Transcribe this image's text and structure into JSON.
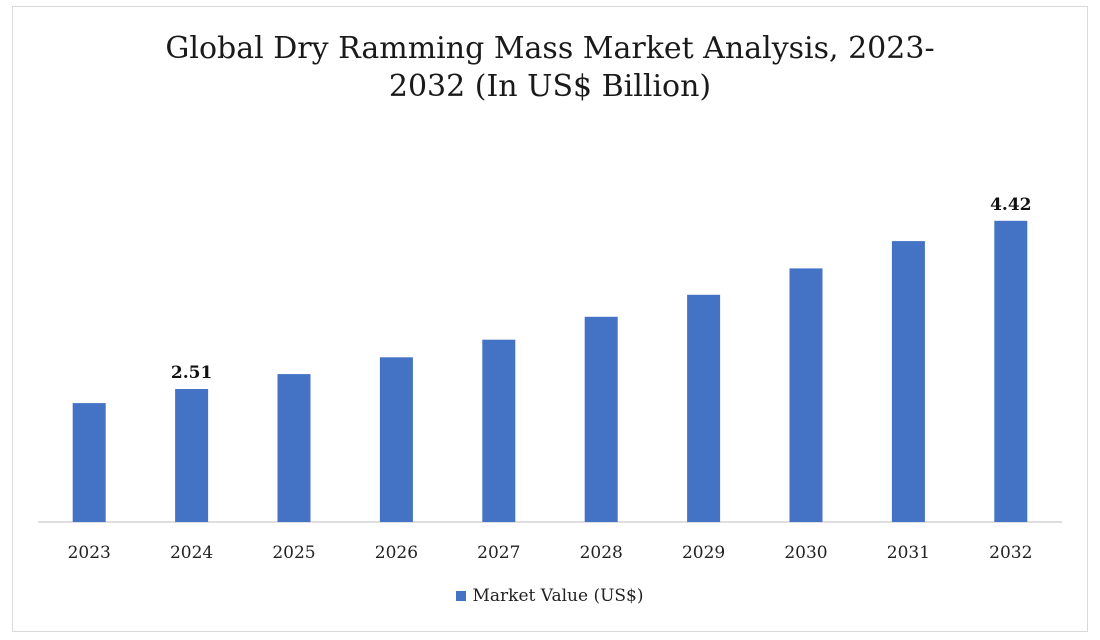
{
  "chart_data": {
    "type": "bar",
    "title_line1": "Global Dry Ramming Mass Market Analysis, 2023-",
    "title_line2": "2032 (In US$ Billion)",
    "categories": [
      "2023",
      "2024",
      "2025",
      "2026",
      "2027",
      "2028",
      "2029",
      "2030",
      "2031",
      "2032"
    ],
    "series": [
      {
        "name": "Market Value (US$)",
        "values": [
          2.35,
          2.51,
          2.68,
          2.87,
          3.07,
          3.33,
          3.58,
          3.88,
          4.19,
          4.42
        ],
        "color": "#4472c4"
      }
    ],
    "data_labels": [
      {
        "category": "2024",
        "text": "2.51"
      },
      {
        "category": "2032",
        "text": "4.42"
      }
    ],
    "ylim": [
      1.0,
      4.6
    ],
    "grid": false,
    "legend_position": "bottom"
  }
}
